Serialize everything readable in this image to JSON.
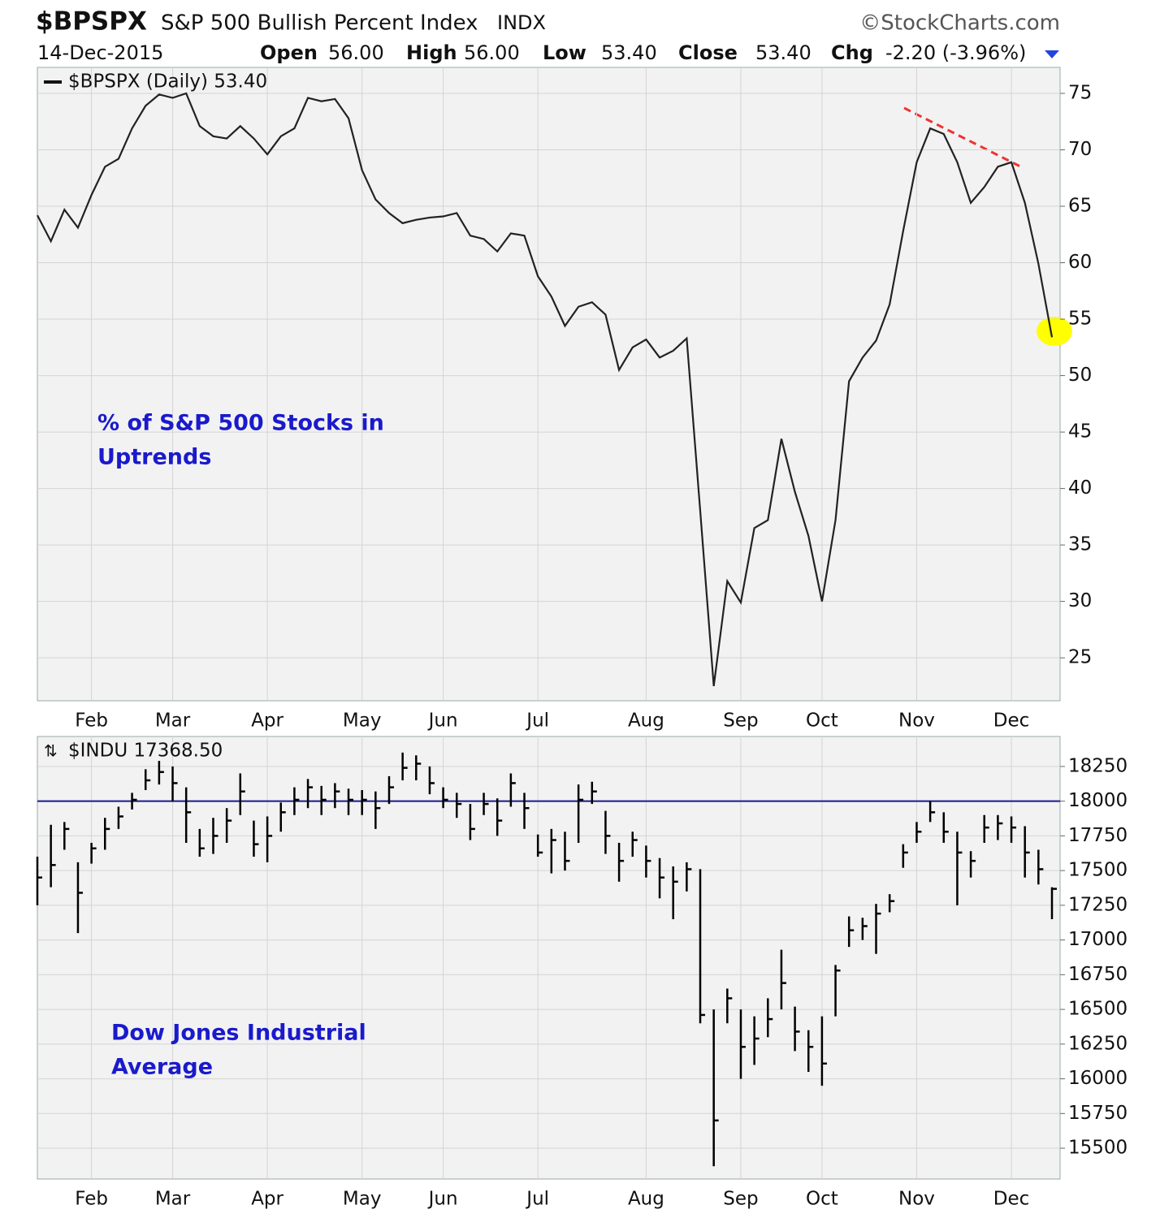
{
  "header": {
    "symbol": "$BPSPX",
    "name": "S&P 500 Bullish Percent Index",
    "exchange": "INDX",
    "source": "©StockCharts.com",
    "date": "14-Dec-2015",
    "quote": [
      {
        "label": "Open",
        "value": "56.00"
      },
      {
        "label": "High",
        "value": "56.00"
      },
      {
        "label": "Low",
        "value": "53.40"
      },
      {
        "label": "Close",
        "value": "53.40"
      },
      {
        "label": "Chg",
        "value": "-2.20 (-3.96%)"
      }
    ]
  },
  "chart_data": [
    {
      "type": "line",
      "legend": "$BPSPX (Daily) 53.40",
      "annotation": [
        "% of S&P 500 Stocks in",
        "Uptrends"
      ],
      "color": "#222222",
      "grid": true,
      "categories": [
        null,
        null,
        null,
        null,
        "Feb",
        null,
        null,
        null,
        null,
        null,
        "Mar",
        null,
        null,
        null,
        null,
        null,
        null,
        "Apr",
        null,
        null,
        null,
        null,
        null,
        null,
        "May",
        null,
        null,
        null,
        null,
        null,
        "Jun",
        null,
        null,
        null,
        null,
        null,
        null,
        "Jul",
        null,
        null,
        null,
        null,
        null,
        null,
        null,
        "Aug",
        null,
        null,
        null,
        null,
        null,
        null,
        "Sep",
        null,
        null,
        null,
        null,
        null,
        "Oct",
        null,
        null,
        null,
        null,
        null,
        null,
        "Nov",
        null,
        null,
        null,
        null,
        null,
        null,
        "Dec",
        null,
        null,
        null
      ],
      "values": [
        64.2,
        61.9,
        64.7,
        63.1,
        66,
        68.5,
        69.2,
        71.9,
        73.9,
        74.9,
        74.6,
        75,
        72.1,
        71.2,
        71,
        72.1,
        71,
        69.6,
        71.2,
        71.9,
        74.6,
        74.3,
        74.5,
        72.8,
        68.2,
        65.6,
        64.4,
        63.5,
        63.8,
        64,
        64.1,
        64.4,
        62.4,
        62.1,
        61,
        62.6,
        62.4,
        58.8,
        57,
        54.4,
        56.1,
        56.5,
        55.4,
        50.5,
        52.5,
        53.2,
        51.6,
        52.2,
        53.3,
        38,
        22.5,
        31.8,
        29.9,
        36.5,
        37.2,
        44.4,
        39.7,
        35.8,
        30,
        37.2,
        49.5,
        51.6,
        53.1,
        56.3,
        62.8,
        68.9,
        71.9,
        71.4,
        68.9,
        65.3,
        66.7,
        68.5,
        68.9,
        65.3,
        59.9,
        53.4
      ],
      "ylim": [
        21.2,
        77.3
      ],
      "yticks": [
        25,
        30,
        35,
        40,
        45,
        50,
        55,
        60,
        65,
        70,
        75
      ]
    },
    {
      "type": "ohlc",
      "legend": "$INDU 17368.50",
      "annotation": [
        "Dow Jones Industrial",
        "Average"
      ],
      "color": "#000000",
      "grid": true,
      "hline": 18000,
      "hline_color": "#1a1a8c",
      "categories": [
        null,
        null,
        null,
        null,
        "Feb",
        null,
        null,
        null,
        null,
        null,
        "Mar",
        null,
        null,
        null,
        null,
        null,
        null,
        "Apr",
        null,
        null,
        null,
        null,
        null,
        null,
        "May",
        null,
        null,
        null,
        null,
        null,
        "Jun",
        null,
        null,
        null,
        null,
        null,
        null,
        "Jul",
        null,
        null,
        null,
        null,
        null,
        null,
        null,
        "Aug",
        null,
        null,
        null,
        null,
        null,
        null,
        "Sep",
        null,
        null,
        null,
        null,
        null,
        "Oct",
        null,
        null,
        null,
        null,
        null,
        null,
        "Nov",
        null,
        null,
        null,
        null,
        null,
        null,
        "Dec",
        null,
        null,
        null
      ],
      "high": [
        17600,
        17830,
        17850,
        17560,
        17700,
        17880,
        17960,
        18060,
        18230,
        18290,
        18250,
        18100,
        17800,
        17880,
        17950,
        18200,
        17860,
        17890,
        17990,
        18100,
        18160,
        18110,
        18130,
        18090,
        18080,
        18070,
        18180,
        18350,
        18330,
        18250,
        18100,
        18060,
        17980,
        18060,
        18020,
        18200,
        18060,
        17760,
        17800,
        17780,
        18120,
        18140,
        17930,
        17700,
        17780,
        17680,
        17590,
        17530,
        17560,
        17510,
        16500,
        16650,
        16500,
        16450,
        16580,
        16930,
        16520,
        16350,
        16450,
        16820,
        17170,
        17160,
        17260,
        17330,
        17690,
        17850,
        18000,
        17920,
        17780,
        17640,
        17900,
        17900,
        17890,
        17820,
        17650,
        17380
      ],
      "low": [
        17250,
        17380,
        17650,
        17050,
        17550,
        17650,
        17800,
        17940,
        18080,
        18120,
        18000,
        17700,
        17600,
        17620,
        17700,
        17900,
        17600,
        17560,
        17780,
        17900,
        17950,
        17900,
        17950,
        17900,
        17900,
        17800,
        17980,
        18150,
        18150,
        18050,
        17950,
        17880,
        17720,
        17900,
        17750,
        17960,
        17800,
        17600,
        17480,
        17500,
        17700,
        17980,
        17620,
        17420,
        17600,
        17450,
        17300,
        17150,
        17350,
        16400,
        15370,
        16400,
        16000,
        16100,
        16300,
        16500,
        16200,
        16050,
        15950,
        16450,
        16950,
        17000,
        16900,
        17200,
        17520,
        17700,
        17850,
        17700,
        17250,
        17450,
        17700,
        17720,
        17700,
        17450,
        17400,
        17150
      ],
      "close": [
        17450,
        17540,
        17800,
        17340,
        17660,
        17800,
        17890,
        18010,
        18150,
        18210,
        18130,
        17920,
        17660,
        17750,
        17860,
        18070,
        17690,
        17750,
        17920,
        18010,
        18100,
        18010,
        18070,
        18010,
        18010,
        17950,
        18100,
        18240,
        18270,
        18130,
        18010,
        17980,
        17800,
        17980,
        17860,
        18130,
        17950,
        17630,
        17720,
        17570,
        18010,
        18070,
        17750,
        17570,
        17720,
        17570,
        17450,
        17420,
        17510,
        16460,
        15700,
        16580,
        16230,
        16290,
        16430,
        16690,
        16340,
        16230,
        16110,
        16780,
        17070,
        17100,
        17190,
        17280,
        17630,
        17780,
        17920,
        17780,
        17630,
        17570,
        17810,
        17840,
        17810,
        17630,
        17510,
        17368.5
      ],
      "ylim": [
        15278,
        18466
      ],
      "yticks": [
        15500,
        15750,
        16000,
        16250,
        16500,
        16750,
        17000,
        17250,
        17500,
        17750,
        18000,
        18250
      ]
    }
  ]
}
